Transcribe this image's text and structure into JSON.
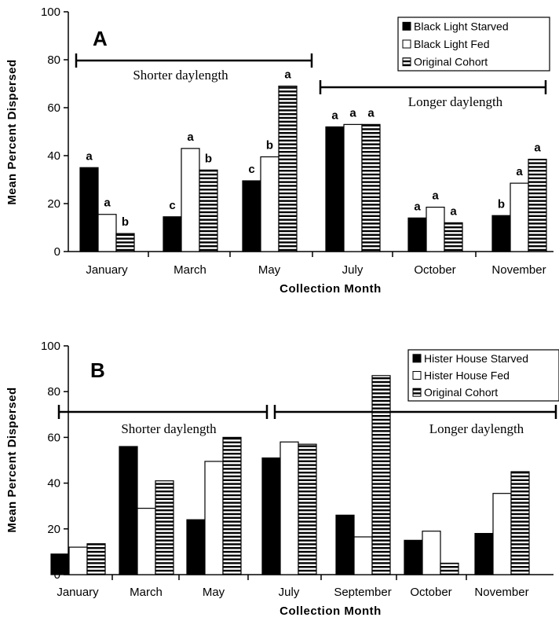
{
  "chart_data": [
    {
      "type": "bar",
      "panel_label": "A",
      "xlabel": "Collection  Month",
      "ylabel": "Mean Percent Dispersed",
      "ylim": [
        0,
        100
      ],
      "yticks": [
        0,
        20,
        40,
        60,
        80,
        100
      ],
      "categories": [
        "January",
        "March",
        "May",
        "July",
        "October",
        "November"
      ],
      "series": [
        {
          "name": "Black Light Starved",
          "fill": "solid",
          "values": [
            35,
            14.5,
            29.5,
            52,
            14,
            15
          ],
          "labels": [
            "a",
            "c",
            "c",
            "a",
            "a",
            "b"
          ]
        },
        {
          "name": "Black Light Fed",
          "fill": "white",
          "values": [
            15.5,
            43,
            39.5,
            53,
            18.5,
            28.5
          ],
          "labels": [
            "a",
            "a",
            "b",
            "a",
            "a",
            "a"
          ]
        },
        {
          "name": "Original Cohort",
          "fill": "hstripe",
          "values": [
            7.5,
            34,
            69,
            53,
            12,
            38.5
          ],
          "labels": [
            "b",
            "b",
            "a",
            "a",
            "a",
            "a"
          ]
        }
      ],
      "legend_position": "top-right",
      "annotations": [
        {
          "text": "Shorter daylength",
          "from": 0,
          "to": 2
        },
        {
          "text": "Longer daylength",
          "from": 3,
          "to": 5
        }
      ]
    },
    {
      "type": "bar",
      "panel_label": "B",
      "xlabel": "Collection  Month",
      "ylabel": "Mean Percent Dispersed",
      "ylim": [
        0,
        100
      ],
      "yticks": [
        0,
        20,
        40,
        60,
        80,
        100
      ],
      "categories": [
        "January",
        "March",
        "May",
        "July",
        "September",
        "October",
        "November"
      ],
      "series": [
        {
          "name": "Hister House Starved",
          "fill": "solid",
          "values": [
            9,
            56,
            24,
            51,
            26,
            15,
            18
          ]
        },
        {
          "name": "Hister House Fed",
          "fill": "white",
          "values": [
            12,
            29,
            49.5,
            58,
            16.5,
            19,
            35.5
          ]
        },
        {
          "name": "Original Cohort",
          "fill": "hstripe",
          "values": [
            13.5,
            41,
            60,
            57,
            87,
            5,
            45
          ]
        }
      ],
      "legend_position": "top-right",
      "annotations": [
        {
          "text": "Shorter daylength",
          "from": 0,
          "to": 2
        },
        {
          "text": "Longer daylength",
          "from": 3,
          "to": 6
        }
      ]
    }
  ]
}
